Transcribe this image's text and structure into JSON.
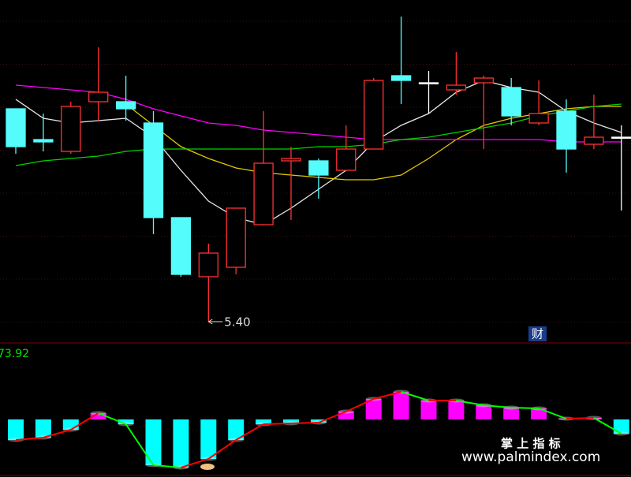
{
  "chart_data": [
    {
      "type": "candlestick",
      "open": [
        6.3,
        6.17,
        6.12,
        6.33,
        6.33,
        6.24,
        5.84,
        5.59,
        5.63,
        5.81,
        6.08,
        6.08,
        6.04,
        6.13,
        6.44,
        6.41,
        6.38,
        6.41,
        6.39,
        6.24,
        6.29,
        6.15,
        6.18
      ],
      "high": [
        6.3,
        6.28,
        6.33,
        6.56,
        6.44,
        6.29,
        5.84,
        5.73,
        5.88,
        6.29,
        6.14,
        6.09,
        6.23,
        6.43,
        6.69,
        6.46,
        6.54,
        6.44,
        6.43,
        6.42,
        6.34,
        6.36,
        6.23
      ],
      "low": [
        6.11,
        6.12,
        6.11,
        6.25,
        6.25,
        5.77,
        5.59,
        5.4,
        5.6,
        5.81,
        5.83,
        5.92,
        6.04,
        6.13,
        6.32,
        6.28,
        6.36,
        6.13,
        6.23,
        6.23,
        6.03,
        6.13,
        5.87
      ],
      "close": [
        6.14,
        6.16,
        6.31,
        6.37,
        6.3,
        5.84,
        5.6,
        5.69,
        5.88,
        6.07,
        6.09,
        6.02,
        6.13,
        6.42,
        6.42,
        6.41,
        6.4,
        6.43,
        6.27,
        6.28,
        6.13,
        6.18,
        6.18
      ],
      "up_color": "#ff3232",
      "down_color": "#54fcfc",
      "flat_color": "#ffffff",
      "series": [
        {
          "color": "#e8e8e8",
          "values": [
            6.34,
            6.26,
            6.24,
            6.25,
            6.26,
            6.18,
            6.04,
            5.91,
            5.84,
            5.81,
            5.88,
            5.96,
            6.04,
            6.16,
            6.23,
            6.28,
            6.37,
            6.42,
            6.39,
            6.37,
            6.29,
            6.24,
            6.2
          ]
        },
        {
          "color": "#e6c800",
          "values": [
            null,
            null,
            null,
            null,
            6.32,
            6.23,
            6.14,
            6.09,
            6.05,
            6.03,
            6.02,
            6.01,
            6.0,
            6.0,
            6.02,
            6.09,
            6.17,
            6.23,
            6.26,
            6.28,
            6.3,
            6.31,
            6.31
          ]
        },
        {
          "color": "#ff00ff",
          "values": [
            6.4,
            6.39,
            6.38,
            6.37,
            6.34,
            6.3,
            6.27,
            6.24,
            6.23,
            6.21,
            6.2,
            6.19,
            6.18,
            6.17,
            6.17,
            6.17,
            6.17,
            6.17,
            6.17,
            6.17,
            6.16,
            6.16,
            6.16
          ]
        },
        {
          "color": "#00d200",
          "values": [
            6.06,
            6.08,
            6.09,
            6.1,
            6.12,
            6.13,
            6.13,
            6.13,
            6.13,
            6.13,
            6.13,
            6.14,
            6.14,
            6.15,
            6.17,
            6.18,
            6.2,
            6.22,
            6.24,
            6.27,
            6.29,
            6.31,
            6.32
          ]
        }
      ],
      "annotations": [
        {
          "value": 5.4,
          "label": "5.40"
        }
      ],
      "ylim": [
        5.32,
        6.76
      ]
    },
    {
      "type": "bar",
      "label": "73.92",
      "values": [
        -26,
        -23,
        -13,
        8,
        -6,
        -58,
        -61,
        -50,
        -26,
        -6,
        -5,
        -4,
        10,
        26,
        35,
        24,
        24,
        18,
        15,
        14,
        1,
        2,
        -18
      ],
      "positive_color": "#ff00ff",
      "negative_color": "#00ffff",
      "rise_color": "#ff0000",
      "fall_color": "#00ff00",
      "ylim": [
        -68,
        92
      ]
    }
  ],
  "badge": "财",
  "watermark": {
    "title": "掌 上 指 标",
    "url": "www.palmindex.com"
  }
}
